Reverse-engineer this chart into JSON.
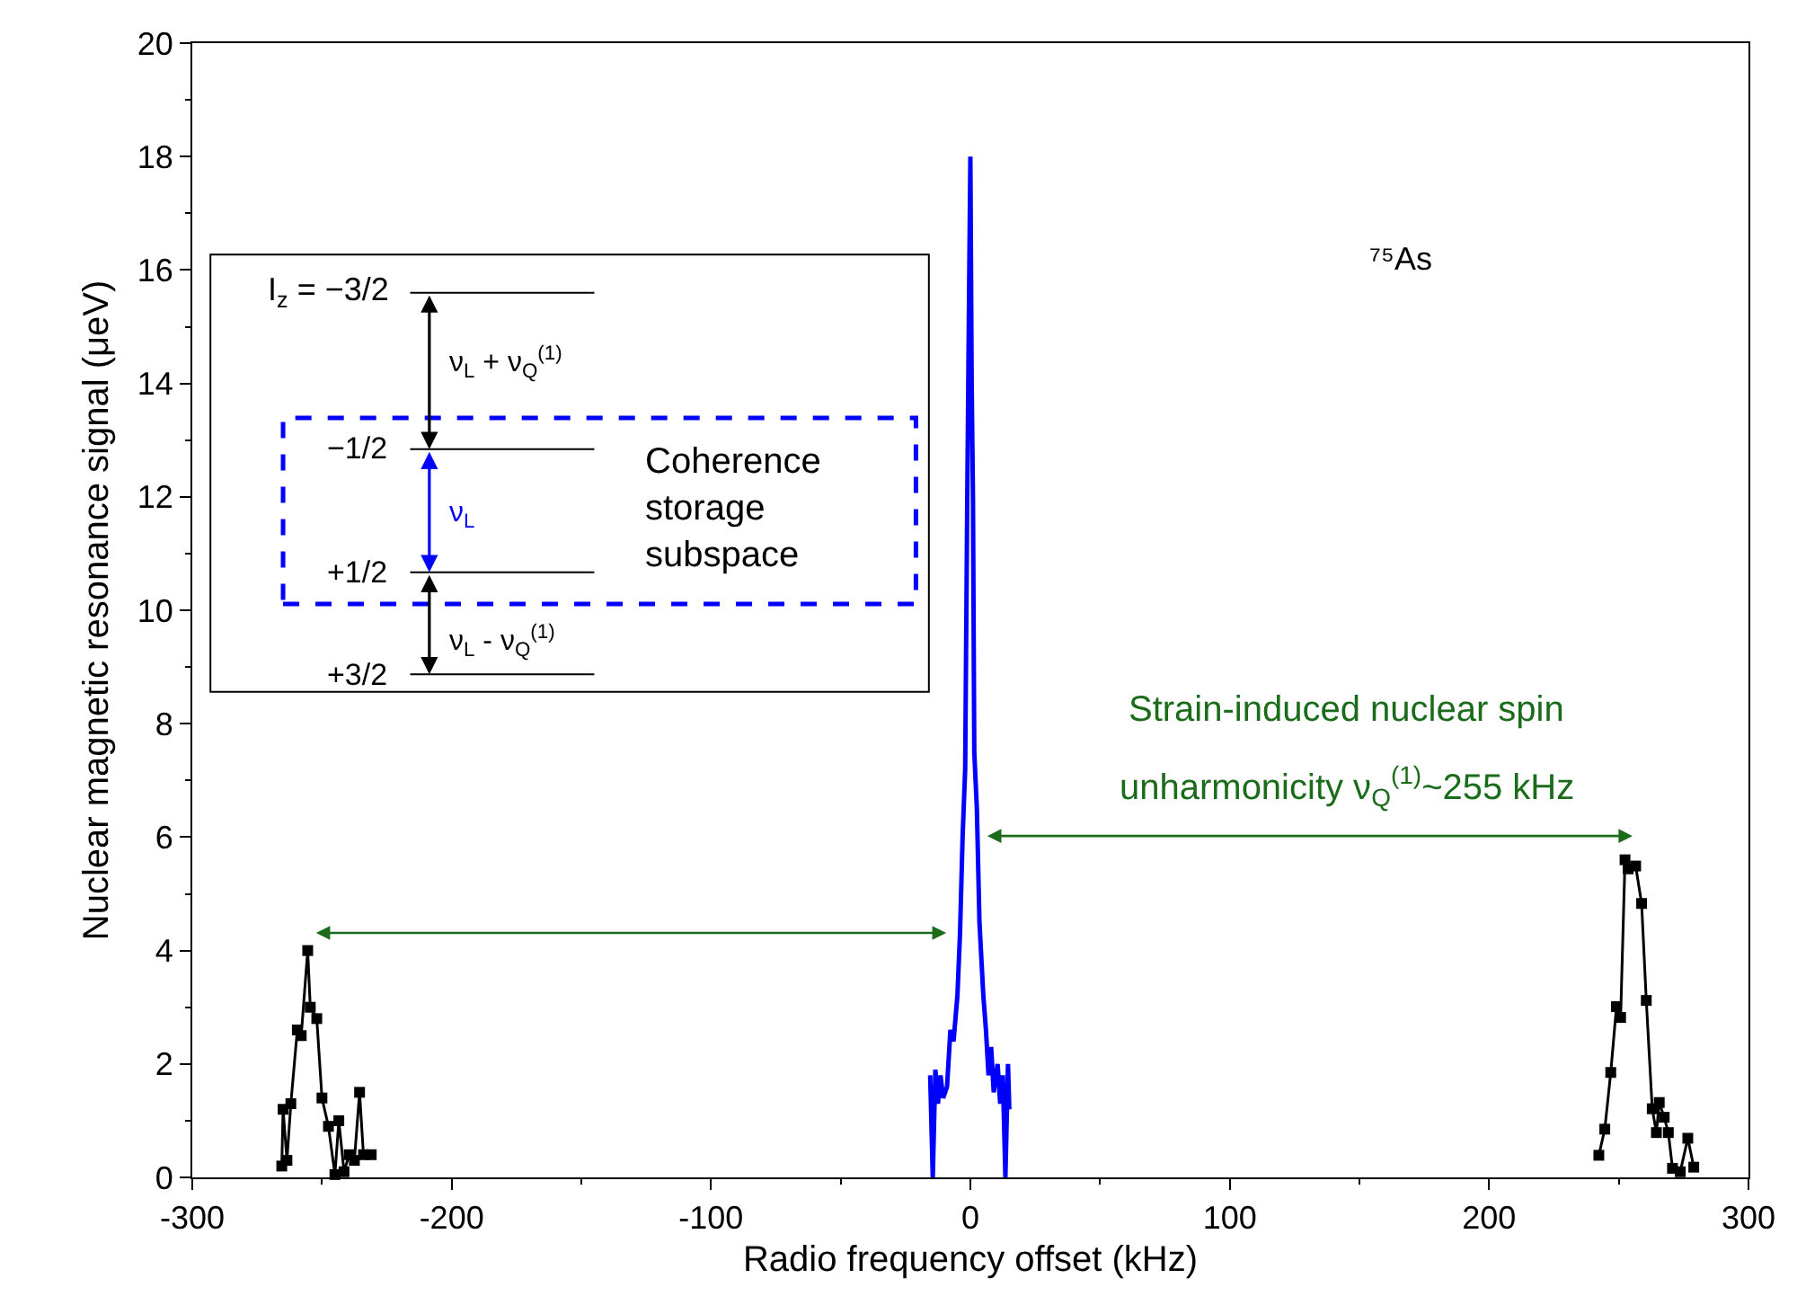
{
  "chart_data": {
    "type": "line",
    "xlabel": "Radio frequency offset (kHz)",
    "ylabel": "Nuclear magnetic resonance signal (μeV)",
    "xlim": [
      -300,
      300
    ],
    "xticks": [
      -300,
      -200,
      -100,
      0,
      100,
      200,
      300
    ],
    "ylim": [
      0,
      20
    ],
    "yticks": [
      0,
      2,
      4,
      6,
      8,
      10,
      12,
      14,
      16,
      18,
      20
    ],
    "marker": "square",
    "legend": false,
    "series": [
      {
        "color": "#000000",
        "x": [
          -265.5,
          -265,
          -263.5,
          -262,
          -259.5,
          -258,
          -255.5,
          -254.5,
          -252,
          -250,
          -247.5,
          -245,
          -243.5,
          -241.5,
          -239.5,
          -237.5,
          -235.5,
          -234,
          -231
        ],
        "values": [
          0.2,
          1.2,
          0.3,
          1.3,
          2.6,
          2.5,
          4.0,
          3.0,
          2.8,
          1.4,
          0.9,
          0.05,
          1.0,
          0.1,
          0.4,
          0.3,
          1.5,
          0.4,
          0.4
        ]
      },
      {
        "color": "#0000ff",
        "marker": "none",
        "x": [
          -15.5,
          -14.5,
          -13.5,
          -12.5,
          -11.5,
          -10.5,
          -9,
          -7.7,
          -6.5,
          -5,
          -4,
          -3,
          -2,
          -1.2,
          -0.5,
          0,
          0.5,
          1,
          1.5,
          2.5,
          3.5,
          5,
          6,
          7,
          8,
          9,
          10.5,
          11.5,
          12.5,
          13.5,
          14.5,
          15
        ],
        "values": [
          1.8,
          0,
          1.9,
          1.3,
          1.8,
          1.4,
          1.6,
          2.6,
          2.4,
          3.2,
          4.3,
          6.0,
          7.2,
          12,
          15.6,
          18,
          14,
          12,
          7.5,
          6.5,
          4.5,
          3.2,
          2.6,
          1.8,
          2.3,
          1.5,
          2.0,
          1.3,
          1.8,
          0,
          2.0,
          1.2
        ]
      },
      {
        "color": "#000000",
        "x": [
          242.3,
          244.6,
          246.9,
          249.1,
          250.7,
          252.4,
          253.6,
          256.5,
          258.8,
          260.6,
          262.9,
          264.5,
          265.6,
          267.5,
          269.1,
          270.7,
          273.7,
          276.6,
          278.9
        ],
        "values": [
          0.39,
          0.85,
          1.85,
          3.01,
          2.82,
          5.6,
          5.44,
          5.49,
          4.83,
          3.12,
          1.21,
          0.79,
          1.32,
          1.06,
          0.79,
          0.16,
          0.1,
          0.69,
          0.18
        ]
      }
    ],
    "annotations": [
      "⁷⁵As",
      "Strain-induced nuclear spin",
      "unharmonicity ν$_{Q}$$^{(1)}$~255 kHz",
      "I$_{z}$ = −3/2",
      "−1/2",
      "+1/2",
      "+3/2",
      "ν$_{L}$ + ν$_{Q}$$^{(1)}$",
      "ν$_{L}$",
      "ν$_{L}$ - ν$_{Q}$$^{(1)}$",
      "Coherence\nstorage\nsubspace"
    ]
  }
}
